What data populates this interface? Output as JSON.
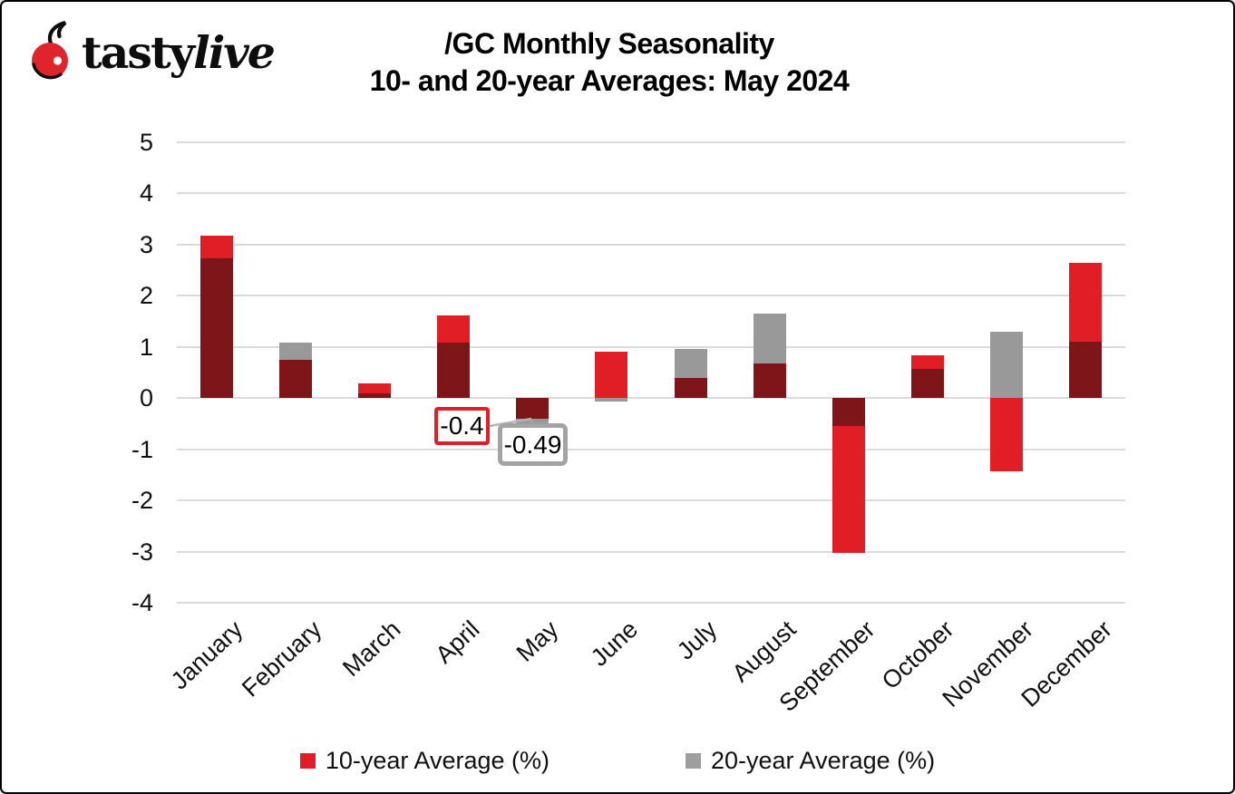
{
  "logo": {
    "brand_tasty": "tasty",
    "brand_live": "live",
    "cherry_color": "#e0242b"
  },
  "header": {
    "title": "/GC Monthly Seasonality",
    "subtitle": "10- and 20-year Averages: May 2024"
  },
  "chart_data": {
    "type": "bar",
    "title": "/GC Monthly Seasonality",
    "subtitle": "10- and 20-year Averages: May 2024",
    "categories": [
      "January",
      "February",
      "March",
      "April",
      "May",
      "June",
      "July",
      "August",
      "September",
      "October",
      "November",
      "December"
    ],
    "series": [
      {
        "name": "10-year Average (%)",
        "color": "#e11e26",
        "values": [
          3.18,
          0.75,
          0.28,
          1.61,
          -0.4,
          0.9,
          0.39,
          0.67,
          -3.02,
          0.83,
          -1.44,
          2.64
        ]
      },
      {
        "name": "20-year Average (%)",
        "color": "#999999",
        "values": [
          2.73,
          1.09,
          0.1,
          1.08,
          -0.49,
          -0.06,
          0.96,
          1.66,
          -0.55,
          0.57,
          1.29,
          1.1
        ]
      }
    ],
    "overlap_color": "#7e1518",
    "ylim": [
      -4,
      5
    ],
    "ytick_step": 1,
    "yticks": [
      "5",
      "4",
      "3",
      "2",
      "1",
      "0",
      "-1",
      "-2",
      "-3",
      "-4"
    ],
    "grid": true,
    "gridline_color": "#dadada",
    "legend_position": "bottom",
    "annotations": [
      {
        "text": "-0.4",
        "month": "May",
        "series": "10-year Average (%)",
        "value": -0.4,
        "border_color": "#e11e26"
      },
      {
        "text": "-0.49",
        "month": "May",
        "series": "20-year Average (%)",
        "value": -0.49,
        "border_color": "#a3a3a3"
      }
    ]
  }
}
